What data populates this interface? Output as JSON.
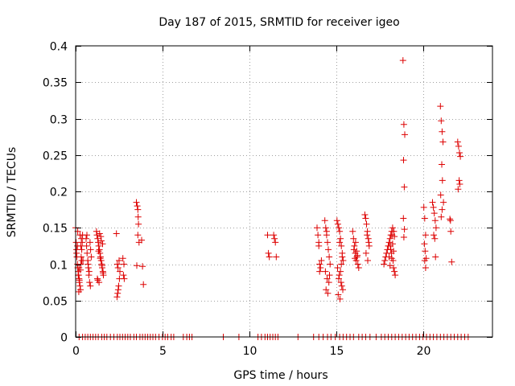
{
  "chart_data": {
    "type": "scatter",
    "title": "Day 187 of 2015, SRMTID for receiver igeo",
    "xlabel": "GPS time / hours",
    "ylabel": "SRMTID / TECUs",
    "xlim": [
      0,
      24
    ],
    "ylim": [
      0,
      0.4
    ],
    "xticks": [
      0,
      5,
      10,
      15,
      20
    ],
    "xtick_labels": [
      "0",
      "5",
      "10",
      "15",
      "20"
    ],
    "yticks": [
      0,
      0.05,
      0.1,
      0.15,
      0.2,
      0.25,
      0.3,
      0.35,
      0.4
    ],
    "ytick_labels": [
      "0",
      "0.05",
      "0.1",
      "0.15",
      "0.2",
      "0.25",
      "0.3",
      "0.35",
      "0.4"
    ],
    "grid": true,
    "marker": "+",
    "series": [
      {
        "name": "SRMTID",
        "color": "#dd0000",
        "x": [
          0.0,
          0.03,
          0.05,
          0.07,
          0.1,
          0.12,
          0.15,
          0.17,
          0.2,
          0.22,
          0.25,
          0.28,
          0.3,
          0.32,
          0.35,
          0.38,
          0.4,
          0.42,
          0.05,
          0.1,
          0.15,
          0.2,
          0.25,
          0.3,
          0.35,
          0.18,
          0.22,
          0.28,
          0.33,
          0.12,
          0.6,
          0.63,
          0.66,
          0.7,
          0.73,
          0.76,
          0.8,
          0.83,
          0.86,
          0.9,
          0.65,
          0.72,
          0.78,
          0.85,
          1.2,
          1.23,
          1.27,
          1.3,
          1.33,
          1.37,
          1.4,
          1.43,
          1.47,
          1.5,
          1.53,
          1.57,
          1.6,
          1.25,
          1.35,
          1.45,
          1.55,
          1.32,
          1.42,
          1.52,
          1.58,
          1.28,
          1.38,
          1.48,
          2.35,
          2.38,
          2.42,
          2.45,
          2.48,
          2.52,
          2.55,
          2.4,
          2.5,
          2.44,
          2.75,
          2.78,
          2.72,
          2.8,
          3.5,
          3.55,
          3.58,
          3.6,
          3.62,
          3.65,
          3.52,
          3.58,
          3.85,
          3.9,
          3.8,
          11.05,
          11.1,
          11.15,
          11.4,
          11.45,
          11.5,
          11.55,
          13.9,
          13.95,
          14.0,
          14.05,
          14.1,
          14.15,
          14.0,
          14.05,
          14.35,
          14.4,
          14.45,
          14.5,
          14.55,
          14.6,
          14.65,
          14.38,
          14.48,
          14.58,
          14.42,
          14.52,
          14.62,
          14.45,
          15.05,
          15.1,
          15.15,
          15.2,
          15.25,
          15.3,
          15.35,
          15.4,
          15.08,
          15.18,
          15.28,
          15.38,
          15.12,
          15.22,
          15.32,
          15.15,
          15.25,
          15.35,
          15.2,
          15.3,
          15.95,
          16.0,
          16.05,
          16.1,
          16.15,
          16.2,
          16.25,
          16.3,
          16.02,
          16.12,
          16.22,
          16.08,
          16.18,
          16.65,
          16.7,
          16.75,
          16.8,
          16.85,
          16.9,
          16.72,
          16.82,
          16.78,
          16.88,
          17.75,
          17.8,
          17.85,
          17.9,
          17.95,
          18.0,
          18.05,
          18.1,
          18.15,
          18.2,
          18.25,
          18.3,
          18.35,
          18.4,
          18.05,
          18.15,
          18.25,
          18.35,
          18.1,
          18.2,
          18.3,
          18.12,
          18.22,
          18.32,
          18.18,
          18.28,
          18.85,
          18.9,
          18.95,
          18.88,
          18.92,
          18.87,
          18.93,
          18.9,
          20.05,
          20.1,
          20.15,
          20.08,
          20.12,
          20.18,
          20.1,
          20.15,
          20.55,
          20.6,
          20.65,
          20.7,
          20.75,
          20.62,
          20.68,
          20.72,
          21.0,
          21.05,
          21.1,
          21.15,
          21.08,
          21.12,
          21.02,
          21.18,
          21.1,
          21.05,
          21.55,
          21.6,
          21.65,
          21.58,
          22.0,
          22.05,
          22.1,
          22.15,
          22.08,
          22.12,
          22.02,
          0.2,
          0.4,
          0.55,
          0.7,
          0.85,
          1.0,
          1.15,
          1.3,
          1.5,
          1.65,
          1.8,
          2.0,
          2.2,
          2.4,
          2.55,
          2.7,
          2.85,
          3.0,
          3.15,
          3.35,
          3.5,
          3.7,
          3.85,
          4.0,
          4.15,
          4.3,
          4.45,
          4.6,
          4.8,
          5.0,
          5.15,
          5.3,
          5.5,
          5.65,
          6.2,
          6.4,
          6.55,
          6.7,
          8.5,
          9.4,
          10.5,
          10.7,
          10.9,
          11.05,
          11.2,
          11.35,
          11.5,
          11.65,
          12.8,
          13.7,
          14.0,
          14.25,
          14.5,
          14.7,
          14.95,
          15.2,
          15.4,
          15.6,
          15.8,
          16.0,
          16.3,
          16.5,
          16.7,
          16.95,
          17.3,
          17.6,
          17.8,
          18.0,
          18.2,
          18.4,
          18.6,
          18.8,
          19.0,
          19.2,
          19.4,
          19.6,
          19.8,
          20.0,
          20.2,
          20.4,
          20.6,
          20.8,
          21.0,
          21.2,
          21.4,
          21.6,
          21.8,
          22.0,
          22.2,
          22.4,
          22.6
        ],
        "y": [
          0.15,
          0.13,
          0.12,
          0.11,
          0.1,
          0.095,
          0.09,
          0.085,
          0.08,
          0.075,
          0.07,
          0.065,
          0.1,
          0.11,
          0.12,
          0.13,
          0.14,
          0.105,
          0.115,
          0.125,
          0.085,
          0.095,
          0.14,
          0.125,
          0.105,
          0.062,
          0.078,
          0.092,
          0.135,
          0.145,
          0.135,
          0.125,
          0.115,
          0.105,
          0.095,
          0.085,
          0.075,
          0.13,
          0.12,
          0.11,
          0.14,
          0.1,
          0.09,
          0.07,
          0.145,
          0.14,
          0.135,
          0.13,
          0.125,
          0.12,
          0.115,
          0.11,
          0.105,
          0.1,
          0.095,
          0.09,
          0.085,
          0.08,
          0.075,
          0.138,
          0.128,
          0.118,
          0.108,
          0.098,
          0.088,
          0.078,
          0.142,
          0.132,
          0.142,
          0.055,
          0.06,
          0.065,
          0.07,
          0.08,
          0.09,
          0.1,
          0.105,
          0.095,
          0.085,
          0.1,
          0.108,
          0.08,
          0.185,
          0.18,
          0.175,
          0.165,
          0.155,
          0.13,
          0.098,
          0.14,
          0.097,
          0.072,
          0.133,
          0.14,
          0.115,
          0.11,
          0.14,
          0.135,
          0.13,
          0.11,
          0.15,
          0.14,
          0.13,
          0.1,
          0.095,
          0.105,
          0.125,
          0.09,
          0.16,
          0.15,
          0.14,
          0.13,
          0.12,
          0.11,
          0.1,
          0.09,
          0.08,
          0.075,
          0.065,
          0.06,
          0.085,
          0.145,
          0.16,
          0.155,
          0.15,
          0.145,
          0.135,
          0.125,
          0.115,
          0.105,
          0.095,
          0.085,
          0.075,
          0.065,
          0.058,
          0.052,
          0.07,
          0.08,
          0.09,
          0.11,
          0.13,
          0.1,
          0.145,
          0.135,
          0.125,
          0.115,
          0.105,
          0.11,
          0.1,
          0.095,
          0.12,
          0.13,
          0.112,
          0.108,
          0.118,
          0.168,
          0.163,
          0.155,
          0.145,
          0.135,
          0.125,
          0.115,
          0.105,
          0.14,
          0.13,
          0.1,
          0.105,
          0.11,
          0.115,
          0.12,
          0.125,
          0.13,
          0.135,
          0.14,
          0.145,
          0.15,
          0.095,
          0.09,
          0.085,
          0.11,
          0.12,
          0.128,
          0.138,
          0.098,
          0.108,
          0.118,
          0.125,
          0.14,
          0.145,
          0.115,
          0.105,
          0.38,
          0.292,
          0.278,
          0.243,
          0.206,
          0.163,
          0.148,
          0.137,
          0.178,
          0.163,
          0.14,
          0.128,
          0.118,
          0.108,
          0.105,
          0.095,
          0.185,
          0.178,
          0.17,
          0.16,
          0.15,
          0.14,
          0.135,
          0.11,
          0.317,
          0.297,
          0.282,
          0.268,
          0.237,
          0.215,
          0.195,
          0.185,
          0.175,
          0.165,
          0.162,
          0.145,
          0.103,
          0.16,
          0.268,
          0.262,
          0.253,
          0.248,
          0.215,
          0.21,
          0.203,
          0,
          0,
          0,
          0,
          0,
          0,
          0,
          0,
          0,
          0,
          0,
          0,
          0,
          0,
          0,
          0,
          0,
          0,
          0,
          0,
          0,
          0,
          0,
          0,
          0,
          0,
          0,
          0,
          0,
          0,
          0,
          0,
          0,
          0,
          0,
          0,
          0,
          0,
          0,
          0,
          0,
          0,
          0,
          0,
          0,
          0,
          0,
          0,
          0,
          0,
          0,
          0,
          0,
          0,
          0,
          0,
          0,
          0,
          0,
          0,
          0,
          0,
          0,
          0,
          0,
          0,
          0,
          0,
          0,
          0,
          0,
          0,
          0,
          0,
          0,
          0,
          0,
          0,
          0,
          0,
          0,
          0,
          0,
          0,
          0,
          0,
          0,
          0,
          0,
          0,
          0
        ]
      }
    ]
  }
}
